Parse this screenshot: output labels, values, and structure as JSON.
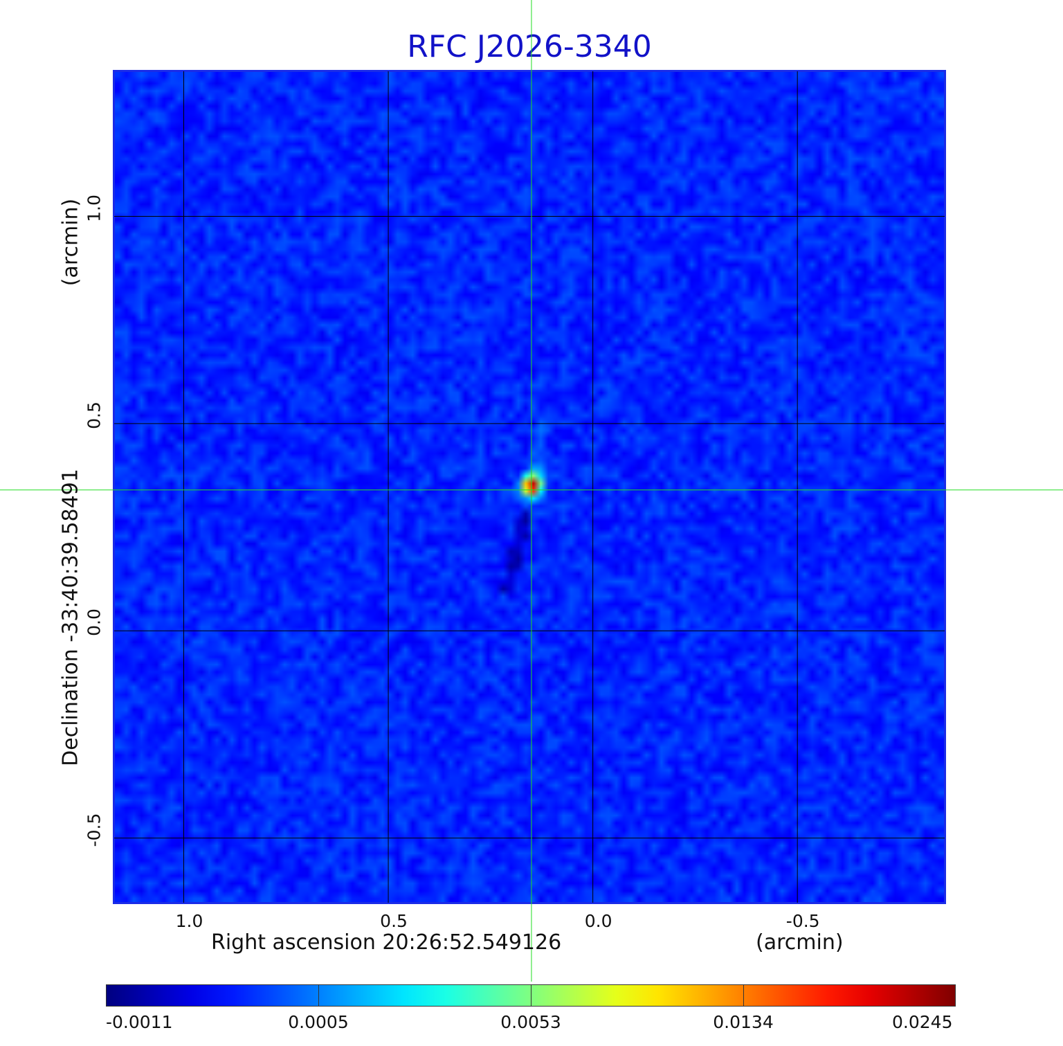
{
  "chart_data": {
    "type": "heatmap",
    "title": "RFC J2026-3340",
    "xlabel": "Right ascension  20:26:52.549126",
    "x_unit": "(arcmin)",
    "ylabel": "Declination  -33:40:39.58491",
    "y_unit": "(arcmin)",
    "xlim": [
      1.17,
      -0.86
    ],
    "ylim": [
      -0.656,
      1.35
    ],
    "x_ticks": [
      {
        "value": 1.0,
        "label": "1.0"
      },
      {
        "value": 0.5,
        "label": "0.5"
      },
      {
        "value": 0.0,
        "label": "0.0"
      },
      {
        "value": -0.5,
        "label": "-0.5"
      }
    ],
    "y_ticks": [
      {
        "value": 1.0,
        "label": "1.0"
      },
      {
        "value": 0.5,
        "label": "0.5"
      },
      {
        "value": 0.0,
        "label": "0.0"
      },
      {
        "value": -0.5,
        "label": "-0.5"
      }
    ],
    "grid": true,
    "crosshair": {
      "x": 0.15,
      "y": 0.34
    },
    "source_peak": {
      "x": 0.15,
      "y": 0.35,
      "value": 0.0245
    },
    "colormap": "jet",
    "colorbar": {
      "labels": [
        "-0.0011",
        "0.0005",
        "0.0053",
        "0.0134",
        "0.0245"
      ],
      "min": -0.0011,
      "max": 0.0245
    }
  },
  "colors": {
    "title": "#1212c8",
    "frame": "#1a2be8",
    "crosshair": "#22dd22",
    "grid": "#000000"
  }
}
